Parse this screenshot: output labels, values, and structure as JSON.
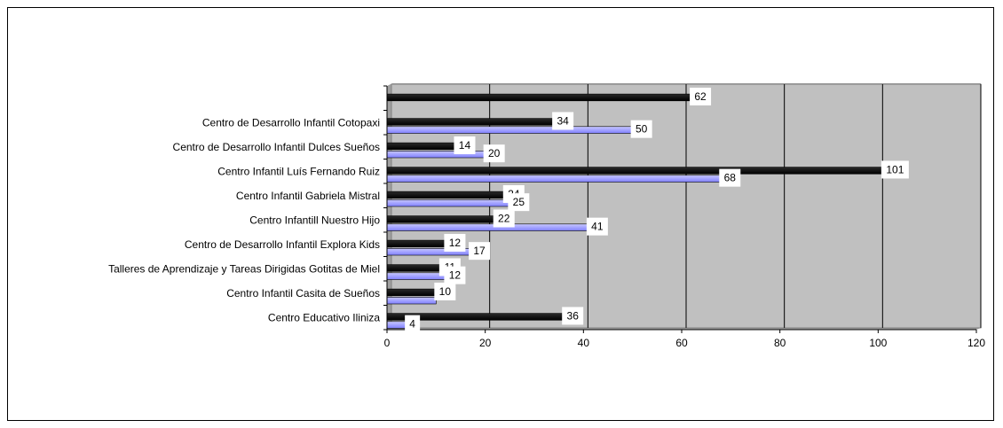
{
  "chart_data": {
    "type": "bar",
    "orientation": "horizontal",
    "categories": [
      "Centro Educativo Iliniza",
      "Centro Infantil Casita de Sueños",
      "Talleres de Aprendizaje y Tareas Dirigidas Gotitas de Miel",
      "Centro de Desarrollo Infantil Explora Kids",
      "Centro Infantill Nuestro Hijo",
      "Centro Infantil Gabriela Mistral",
      "Centro Infantil Luís Fernando Ruiz",
      "Centro de Desarrollo Infantil Dulces Sueños",
      "Centro de Desarrollo Infantil Cotopaxi"
    ],
    "series": [
      {
        "values": [
          4,
          10,
          12,
          17,
          41,
          25,
          68,
          20,
          50
        ]
      },
      {
        "values": [
          36,
          10,
          11,
          12,
          22,
          24,
          101,
          14,
          34
        ]
      }
    ],
    "top_bar_value": 62,
    "xlim": [
      0,
      120
    ],
    "xticks": [
      "0",
      "20",
      "40",
      "60",
      "80",
      "100",
      "120"
    ],
    "grid": true,
    "legend": "none",
    "colors": {
      "series_a": "#9999ff",
      "series_b": "#000080",
      "plot_bg": "#c0c0c0"
    },
    "labels": [
      {
        "value": "62",
        "series": 1,
        "slot": 9
      },
      {
        "value": "34",
        "series": 1,
        "slot": 8
      },
      {
        "value": "50",
        "series": 0,
        "slot": 8
      },
      {
        "value": "14",
        "series": 1,
        "slot": 7
      },
      {
        "value": "20",
        "series": 0,
        "slot": 7
      },
      {
        "value": "101",
        "series": 1,
        "slot": 6
      },
      {
        "value": "68",
        "series": 0,
        "slot": 6
      },
      {
        "value": "24",
        "series": 1,
        "slot": 5
      },
      {
        "value": "25",
        "series": 0,
        "slot": 5
      },
      {
        "value": "22",
        "series": 1,
        "slot": 4
      },
      {
        "value": "41",
        "series": 0,
        "slot": 4
      },
      {
        "value": "12",
        "series": 1,
        "slot": 3
      },
      {
        "value": "17",
        "series": 0,
        "slot": 3
      },
      {
        "value": "11",
        "series": 1,
        "slot": 2
      },
      {
        "value": "12",
        "series": 0,
        "slot": 2
      },
      {
        "value": "10",
        "series": 1,
        "slot": 1
      },
      {
        "value": "4",
        "series": 0,
        "slot": 0
      },
      {
        "value": "36",
        "series": 1,
        "slot": 0
      }
    ]
  }
}
